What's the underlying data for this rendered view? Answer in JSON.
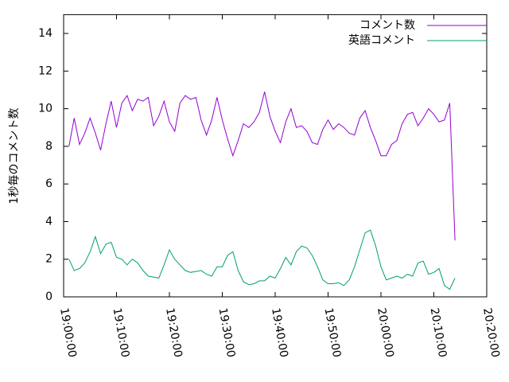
{
  "chart_data": {
    "type": "line",
    "ylabel": "1秒毎のコメント数",
    "x": [
      "19:01:00",
      "19:02:00",
      "19:03:00",
      "19:04:00",
      "19:05:00",
      "19:06:00",
      "19:07:00",
      "19:08:00",
      "19:09:00",
      "19:10:00",
      "19:11:00",
      "19:12:00",
      "19:13:00",
      "19:14:00",
      "19:15:00",
      "19:16:00",
      "19:17:00",
      "19:18:00",
      "19:19:00",
      "19:20:00",
      "19:21:00",
      "19:22:00",
      "19:23:00",
      "19:24:00",
      "19:25:00",
      "19:26:00",
      "19:27:00",
      "19:28:00",
      "19:29:00",
      "19:30:00",
      "19:31:00",
      "19:32:00",
      "19:33:00",
      "19:34:00",
      "19:35:00",
      "19:36:00",
      "19:37:00",
      "19:38:00",
      "19:39:00",
      "19:40:00",
      "19:41:00",
      "19:42:00",
      "19:43:00",
      "19:44:00",
      "19:45:00",
      "19:46:00",
      "19:47:00",
      "19:48:00",
      "19:49:00",
      "19:50:00",
      "19:51:00",
      "19:52:00",
      "19:53:00",
      "19:54:00",
      "19:55:00",
      "19:56:00",
      "19:57:00",
      "19:58:00",
      "19:59:00",
      "20:00:00",
      "20:01:00",
      "20:02:00",
      "20:03:00",
      "20:04:00",
      "20:05:00",
      "20:06:00",
      "20:07:00",
      "20:08:00",
      "20:09:00",
      "20:10:00",
      "20:11:00",
      "20:12:00",
      "20:13:00",
      "20:14:00"
    ],
    "series": [
      {
        "name": "コメント数",
        "color": "#9400d3",
        "values": [
          8.0,
          9.5,
          8.1,
          8.7,
          9.5,
          8.7,
          7.8,
          9.2,
          10.4,
          9.0,
          10.3,
          10.7,
          9.9,
          10.5,
          10.4,
          10.6,
          9.1,
          9.6,
          10.4,
          9.3,
          8.8,
          10.3,
          10.7,
          10.5,
          10.6,
          9.4,
          8.6,
          9.4,
          10.6,
          9.4,
          8.4,
          7.5,
          8.3,
          9.2,
          9.0,
          9.3,
          9.8,
          10.9,
          9.6,
          8.8,
          8.2,
          9.3,
          10.0,
          9.0,
          9.1,
          8.8,
          8.2,
          8.1,
          8.9,
          9.4,
          8.9,
          9.2,
          9.0,
          8.7,
          8.6,
          9.5,
          9.9,
          9.0,
          8.3,
          7.5,
          7.5,
          8.1,
          8.3,
          9.2,
          9.7,
          9.8,
          9.1,
          9.5,
          10.0,
          9.7,
          9.3,
          9.4,
          10.3,
          3.0
        ]
      },
      {
        "name": "英語コメント",
        "color": "#009e73",
        "values": [
          2.0,
          1.4,
          1.5,
          1.8,
          2.4,
          3.2,
          2.3,
          2.8,
          2.9,
          2.1,
          2.0,
          1.7,
          2.0,
          1.8,
          1.4,
          1.1,
          1.05,
          1.0,
          1.7,
          2.5,
          2.0,
          1.7,
          1.4,
          1.3,
          1.35,
          1.4,
          1.2,
          1.1,
          1.6,
          1.6,
          2.2,
          2.4,
          1.4,
          0.8,
          0.65,
          0.7,
          0.85,
          0.85,
          1.1,
          1.0,
          1.5,
          2.1,
          1.7,
          2.4,
          2.7,
          2.6,
          2.2,
          1.6,
          0.9,
          0.7,
          0.7,
          0.75,
          0.6,
          0.9,
          1.6,
          2.5,
          3.4,
          3.55,
          2.7,
          1.6,
          0.9,
          1.0,
          1.1,
          1.0,
          1.2,
          1.1,
          1.8,
          1.9,
          1.2,
          1.3,
          1.5,
          0.6,
          0.4,
          1.0
        ]
      }
    ],
    "xlim": [
      "19:00:00",
      "20:20:00"
    ],
    "xticks": [
      "19:00:00",
      "19:10:00",
      "19:20:00",
      "19:30:00",
      "19:40:00",
      "19:50:00",
      "20:00:00",
      "20:10:00",
      "20:20:00"
    ],
    "ylim": [
      0,
      15
    ],
    "yticks": [
      0,
      2,
      4,
      6,
      8,
      10,
      12,
      14
    ],
    "legend": "top-right"
  }
}
